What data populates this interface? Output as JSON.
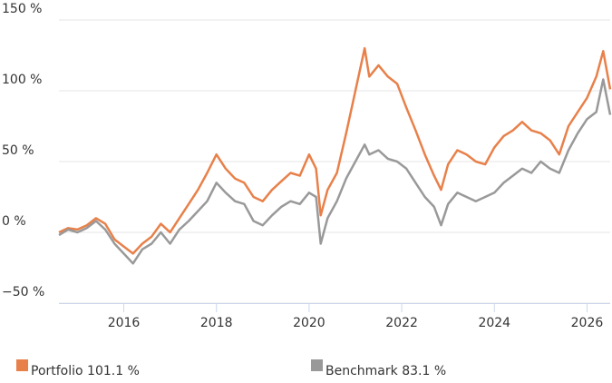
{
  "chart_data": {
    "type": "line",
    "x": [
      2014.6,
      2014.8,
      2015.0,
      2015.2,
      2015.4,
      2015.6,
      2015.8,
      2016.0,
      2016.2,
      2016.4,
      2016.6,
      2016.8,
      2017.0,
      2017.2,
      2017.4,
      2017.6,
      2017.8,
      2018.0,
      2018.2,
      2018.4,
      2018.6,
      2018.8,
      2019.0,
      2019.2,
      2019.4,
      2019.6,
      2019.8,
      2020.0,
      2020.15,
      2020.25,
      2020.4,
      2020.6,
      2020.8,
      2021.0,
      2021.2,
      2021.3,
      2021.5,
      2021.7,
      2021.9,
      2022.1,
      2022.3,
      2022.5,
      2022.7,
      2022.85,
      2023.0,
      2023.2,
      2023.4,
      2023.6,
      2023.8,
      2024.0,
      2024.2,
      2024.4,
      2024.6,
      2024.8,
      2025.0,
      2025.2,
      2025.4,
      2025.6,
      2025.8,
      2026.0,
      2026.2,
      2026.35,
      2026.5
    ],
    "series": [
      {
        "name": "Portfolio 101.1 %",
        "color": "#e8804a",
        "values": [
          0,
          3,
          2,
          5,
          10,
          6,
          -5,
          -10,
          -15,
          -8,
          -3,
          6,
          0,
          10,
          20,
          30,
          42,
          55,
          45,
          38,
          35,
          25,
          22,
          30,
          36,
          42,
          40,
          55,
          45,
          12,
          30,
          42,
          70,
          100,
          130,
          110,
          118,
          110,
          105,
          88,
          72,
          55,
          40,
          30,
          48,
          58,
          55,
          50,
          48,
          60,
          68,
          72,
          78,
          72,
          70,
          65,
          55,
          75,
          85,
          95,
          110,
          128,
          101
        ]
      },
      {
        "name": "Benchmark 83.1 %",
        "color": "#999999",
        "values": [
          -2,
          2,
          0,
          3,
          8,
          2,
          -8,
          -15,
          -22,
          -12,
          -8,
          0,
          -8,
          2,
          8,
          15,
          22,
          35,
          28,
          22,
          20,
          8,
          5,
          12,
          18,
          22,
          20,
          28,
          25,
          -8,
          10,
          22,
          38,
          50,
          62,
          55,
          58,
          52,
          50,
          45,
          35,
          25,
          18,
          5,
          20,
          28,
          25,
          22,
          25,
          28,
          35,
          40,
          45,
          42,
          50,
          45,
          42,
          58,
          70,
          80,
          85,
          108,
          83
        ]
      }
    ],
    "xlim": [
      2014.6,
      2026.5
    ],
    "xticks": [
      2016,
      2018,
      2020,
      2022,
      2024,
      2026
    ],
    "ylim": [
      -50,
      150
    ],
    "yticks": [
      {
        "value": -50,
        "label": "−50 %"
      },
      {
        "value": 0,
        "label": "0 %"
      },
      {
        "value": 50,
        "label": "50 %"
      },
      {
        "value": 100,
        "label": "100 %"
      },
      {
        "value": 150,
        "label": "150 %"
      }
    ],
    "grid": true
  }
}
